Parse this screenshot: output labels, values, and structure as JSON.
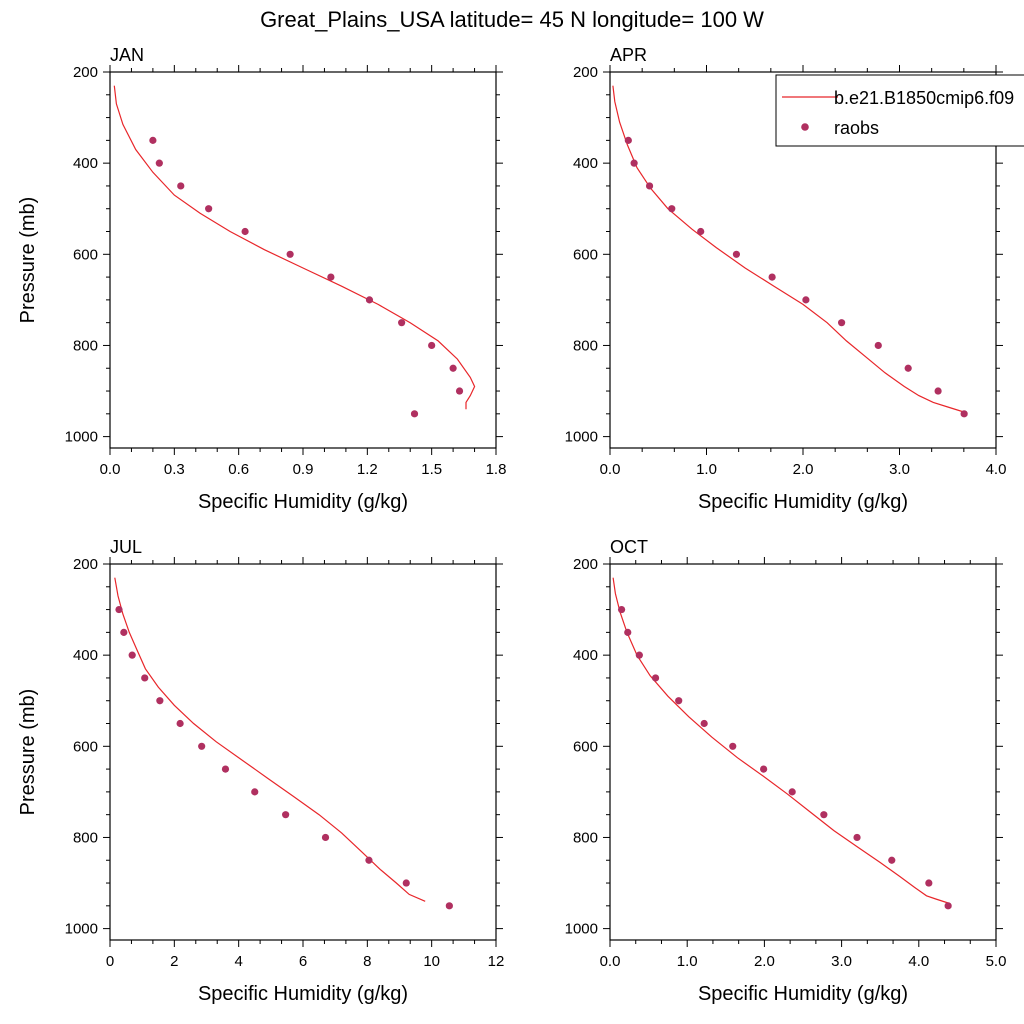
{
  "title": "Great_Plains_USA  latitude= 45 N longitude= 100 W",
  "colors": {
    "model": "#e8262a",
    "obs": "#b03060",
    "axis": "#000000"
  },
  "legend": {
    "placement": "top-right of APR panel",
    "items": [
      {
        "label": "b.e21.B1850cmip6.f09",
        "kind": "line",
        "color": "#e8262a"
      },
      {
        "label": "raobs",
        "kind": "marker",
        "color": "#b03060"
      }
    ]
  },
  "chart_data": [
    {
      "type": "line",
      "panel": "JAN",
      "xlabel": "Specific Humidity (g/kg)",
      "ylabel": "Pressure (mb)",
      "xlim": [
        0,
        1.8
      ],
      "ylim": [
        1025,
        200
      ],
      "xticks": [
        "0.0",
        "0.3",
        "0.6",
        "0.9",
        "1.2",
        "1.5",
        "1.8"
      ],
      "xtick_values": [
        0,
        0.3,
        0.6,
        0.9,
        1.2,
        1.5,
        1.8
      ],
      "yticks": [
        "200",
        "400",
        "600",
        "800",
        "1000"
      ],
      "ytick_values": [
        200,
        400,
        600,
        800,
        1000
      ],
      "model": {
        "x": [
          0.02,
          0.03,
          0.06,
          0.12,
          0.2,
          0.3,
          0.42,
          0.56,
          0.72,
          0.9,
          1.08,
          1.25,
          1.4,
          1.53,
          1.62,
          1.68,
          1.7,
          1.68,
          1.66,
          1.66
        ],
        "y": [
          230,
          270,
          315,
          370,
          420,
          470,
          510,
          550,
          590,
          630,
          670,
          710,
          750,
          790,
          830,
          870,
          890,
          910,
          925,
          940
        ]
      },
      "obs": {
        "x": [
          0.2,
          0.23,
          0.33,
          0.46,
          0.63,
          0.84,
          1.03,
          1.21,
          1.36,
          1.5,
          1.6,
          1.63,
          1.42
        ],
        "y": [
          350,
          400,
          450,
          500,
          550,
          600,
          650,
          700,
          750,
          800,
          850,
          900,
          950
        ]
      }
    },
    {
      "type": "line",
      "panel": "APR",
      "xlabel": "Specific Humidity (g/kg)",
      "ylabel": "",
      "xlim": [
        0,
        4
      ],
      "ylim": [
        1025,
        200
      ],
      "xticks": [
        "0.0",
        "1.0",
        "2.0",
        "3.0",
        "4.0"
      ],
      "xtick_values": [
        0,
        1,
        2,
        3,
        4
      ],
      "yticks": [
        "200",
        "400",
        "600",
        "800",
        "1000"
      ],
      "ytick_values": [
        200,
        400,
        600,
        800,
        1000
      ],
      "model": {
        "x": [
          0.03,
          0.05,
          0.1,
          0.18,
          0.28,
          0.42,
          0.6,
          0.85,
          1.1,
          1.4,
          1.7,
          2.0,
          2.25,
          2.45,
          2.65,
          2.85,
          3.05,
          3.2,
          3.35,
          3.5,
          3.65
        ],
        "y": [
          230,
          265,
          310,
          360,
          410,
          455,
          500,
          545,
          585,
          630,
          670,
          710,
          750,
          790,
          825,
          860,
          890,
          910,
          925,
          935,
          945
        ]
      },
      "obs": {
        "x": [
          0.19,
          0.25,
          0.41,
          0.64,
          0.94,
          1.31,
          1.68,
          2.03,
          2.4,
          2.78,
          3.09,
          3.4,
          3.67
        ],
        "y": [
          350,
          400,
          450,
          500,
          550,
          600,
          650,
          700,
          750,
          800,
          850,
          900,
          950
        ]
      }
    },
    {
      "type": "line",
      "panel": "JUL",
      "xlabel": "Specific Humidity (g/kg)",
      "ylabel": "Pressure (mb)",
      "xlim": [
        0,
        12
      ],
      "ylim": [
        1025,
        200
      ],
      "xticks": [
        "0",
        "2",
        "4",
        "6",
        "8",
        "10",
        "12"
      ],
      "xtick_values": [
        0,
        2,
        4,
        6,
        8,
        10,
        12
      ],
      "yticks": [
        "200",
        "400",
        "600",
        "800",
        "1000"
      ],
      "ytick_values": [
        200,
        400,
        600,
        800,
        1000
      ],
      "model": {
        "x": [
          0.15,
          0.25,
          0.4,
          0.6,
          0.85,
          1.1,
          1.5,
          2.0,
          2.6,
          3.3,
          4.1,
          4.9,
          5.7,
          6.5,
          7.2,
          7.8,
          8.4,
          8.9,
          9.3,
          9.8
        ],
        "y": [
          230,
          270,
          310,
          350,
          390,
          430,
          470,
          510,
          550,
          590,
          630,
          670,
          710,
          750,
          790,
          830,
          870,
          900,
          925,
          940
        ]
      },
      "obs": {
        "x": [
          0.28,
          0.43,
          0.69,
          1.08,
          1.55,
          2.18,
          2.85,
          3.59,
          4.5,
          5.46,
          6.7,
          8.05,
          9.21,
          10.55
        ],
        "y": [
          300,
          350,
          400,
          450,
          500,
          550,
          600,
          650,
          700,
          750,
          800,
          850,
          900,
          950
        ]
      }
    },
    {
      "type": "line",
      "panel": "OCT",
      "xlabel": "Specific Humidity (g/kg)",
      "ylabel": "",
      "xlim": [
        0,
        5
      ],
      "ylim": [
        1025,
        200
      ],
      "xticks": [
        "0.0",
        "1.0",
        "2.0",
        "3.0",
        "4.0",
        "5.0"
      ],
      "xtick_values": [
        0,
        1,
        2,
        3,
        4,
        5
      ],
      "yticks": [
        "200",
        "400",
        "600",
        "800",
        "1000"
      ],
      "ytick_values": [
        200,
        400,
        600,
        800,
        1000
      ],
      "model": {
        "x": [
          0.04,
          0.07,
          0.13,
          0.22,
          0.35,
          0.52,
          0.75,
          1.02,
          1.32,
          1.65,
          1.98,
          2.3,
          2.6,
          2.9,
          3.2,
          3.5,
          3.75,
          3.95,
          4.1,
          4.22,
          4.4
        ],
        "y": [
          230,
          265,
          305,
          350,
          400,
          445,
          490,
          535,
          580,
          625,
          665,
          705,
          745,
          785,
          820,
          855,
          885,
          910,
          928,
          935,
          945
        ]
      },
      "obs": {
        "x": [
          0.15,
          0.23,
          0.38,
          0.59,
          0.89,
          1.22,
          1.59,
          1.99,
          2.36,
          2.77,
          3.2,
          3.65,
          4.13,
          4.38
        ],
        "y": [
          300,
          350,
          400,
          450,
          500,
          550,
          600,
          650,
          700,
          750,
          800,
          850,
          900,
          950
        ]
      }
    }
  ]
}
